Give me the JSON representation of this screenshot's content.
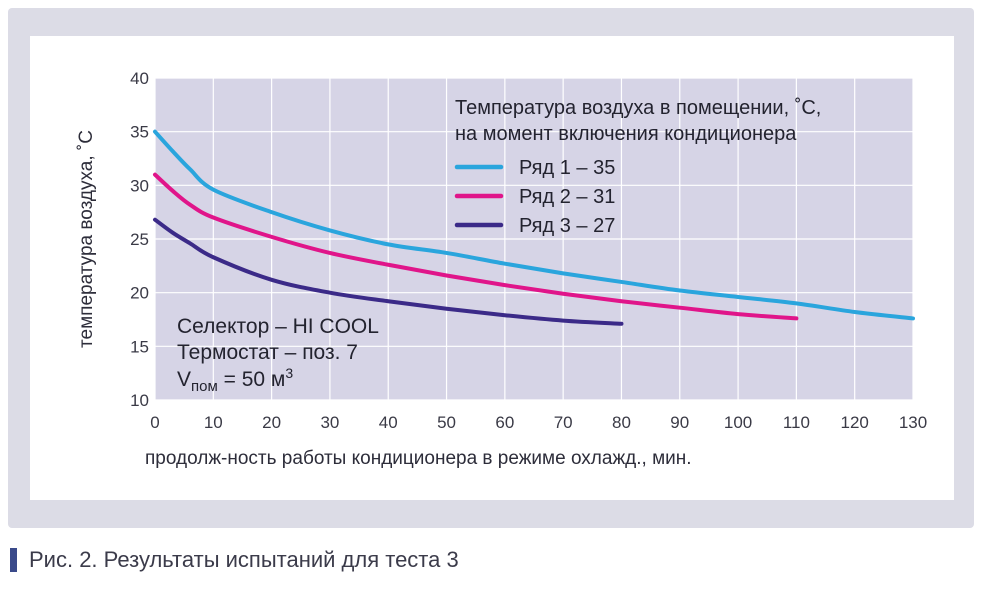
{
  "chart_data": {
    "type": "line",
    "xlabel": "продолж-ность работы кондиционера в режиме охлажд., мин.",
    "ylabel": "температура воздуха, ˚С",
    "xlim": [
      0,
      130
    ],
    "ylim": [
      10,
      40
    ],
    "xticks": [
      "0",
      "10",
      "20",
      "30",
      "40",
      "50",
      "60",
      "70",
      "80",
      "90",
      "100",
      "110",
      "120",
      "130"
    ],
    "yticks": [
      "10",
      "15",
      "20",
      "25",
      "30",
      "35",
      "40"
    ],
    "grid": true,
    "legend": {
      "title_line1": "Температура воздуха в помещении, ˚С,",
      "title_line2": "на момент включения кондиционера",
      "placement": "top-right"
    },
    "series": [
      {
        "name": "Ряд 1 – 35",
        "color": "#2aa5dd",
        "x": [
          0,
          3,
          6,
          10,
          20,
          30,
          40,
          50,
          60,
          70,
          80,
          90,
          100,
          110,
          120,
          130
        ],
        "y": [
          35,
          33.2,
          31.5,
          29.6,
          27.5,
          25.8,
          24.5,
          23.7,
          22.7,
          21.8,
          21.0,
          20.2,
          19.6,
          19.0,
          18.2,
          17.6
        ]
      },
      {
        "name": "Ряд 2 – 31",
        "color": "#e0158a",
        "x": [
          0,
          3,
          6,
          10,
          20,
          30,
          40,
          50,
          60,
          70,
          80,
          90,
          100,
          110
        ],
        "y": [
          31,
          29.5,
          28.2,
          27.0,
          25.2,
          23.7,
          22.6,
          21.6,
          20.7,
          19.9,
          19.2,
          18.6,
          18.0,
          17.6
        ]
      },
      {
        "name": "Ряд 3 – 27",
        "color": "#3b2a88",
        "x": [
          0,
          3,
          6,
          10,
          20,
          30,
          40,
          50,
          60,
          70,
          80
        ],
        "y": [
          26.8,
          25.6,
          24.6,
          23.3,
          21.2,
          20.0,
          19.2,
          18.5,
          17.9,
          17.4,
          17.1
        ]
      }
    ],
    "annotation": {
      "line1": "Селектор – HI COOL",
      "line2": "Термостат – поз. 7",
      "line3_main": "V",
      "line3_sub": "пом",
      "line3_rest": " = 50 м",
      "line3_sup": "3"
    }
  },
  "caption": {
    "text": "Рис. 2. Результаты испытаний для теста 3",
    "bar_color": "#3a4a8a"
  },
  "colors": {
    "plot_bg": "#d6d4e6",
    "grid": "#ffffff",
    "frame": "#dcdce6"
  }
}
